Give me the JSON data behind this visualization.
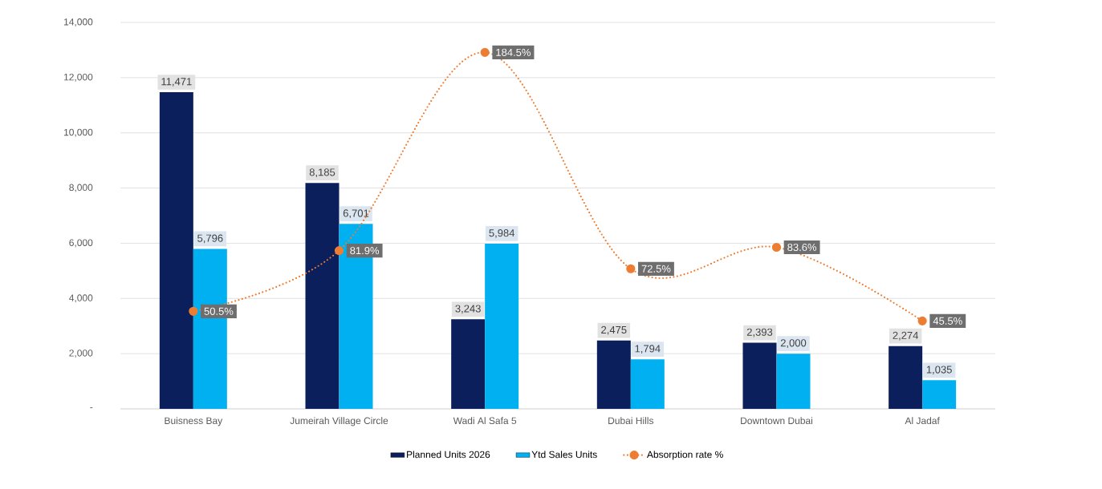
{
  "chart_data": {
    "type": "bar",
    "categories": [
      "Buisness Bay",
      "Jumeirah Village Circle",
      "Wadi Al Safa 5",
      "Dubai Hills",
      "Downtown Dubai",
      "Al Jadaf"
    ],
    "series": [
      {
        "name": "Planned Units 2026",
        "color": "#0b1f5c",
        "values": [
          11471,
          8185,
          3243,
          2475,
          2393,
          2274
        ],
        "value_labels": [
          "11,471",
          "8,185",
          "3,243",
          "2,475",
          "2,393",
          "2,274"
        ]
      },
      {
        "name": "Ytd Sales Units",
        "color": "#00b0f0",
        "values": [
          5796,
          6701,
          5984,
          1794,
          2000,
          1035
        ],
        "value_labels": [
          "5,796",
          "6,701",
          "5,984",
          "1,794",
          "2,000",
          "1,035"
        ]
      },
      {
        "name": "Absorption rate %",
        "type": "line",
        "axis": "y2",
        "color": "#ed7d31",
        "marker": "circle",
        "line_style": "dotted",
        "values": [
          50.5,
          81.9,
          184.5,
          72.5,
          83.6,
          45.5
        ],
        "value_labels": [
          "50.5%",
          "81.9%",
          "184.5%",
          "72.5%",
          "83.6%",
          "45.5%"
        ]
      }
    ],
    "ylim": [
      0,
      14000
    ],
    "yticks": [
      {
        "value": 0,
        "label": "-"
      },
      {
        "value": 2000,
        "label": "2,000"
      },
      {
        "value": 4000,
        "label": "4,000"
      },
      {
        "value": 6000,
        "label": "6,000"
      },
      {
        "value": 8000,
        "label": "8,000"
      },
      {
        "value": 10000,
        "label": "10,000"
      },
      {
        "value": 12000,
        "label": "12,000"
      },
      {
        "value": 14000,
        "label": "14,000"
      }
    ],
    "y2lim": [
      0,
      200
    ],
    "grid": "y",
    "legend": "bottom"
  }
}
